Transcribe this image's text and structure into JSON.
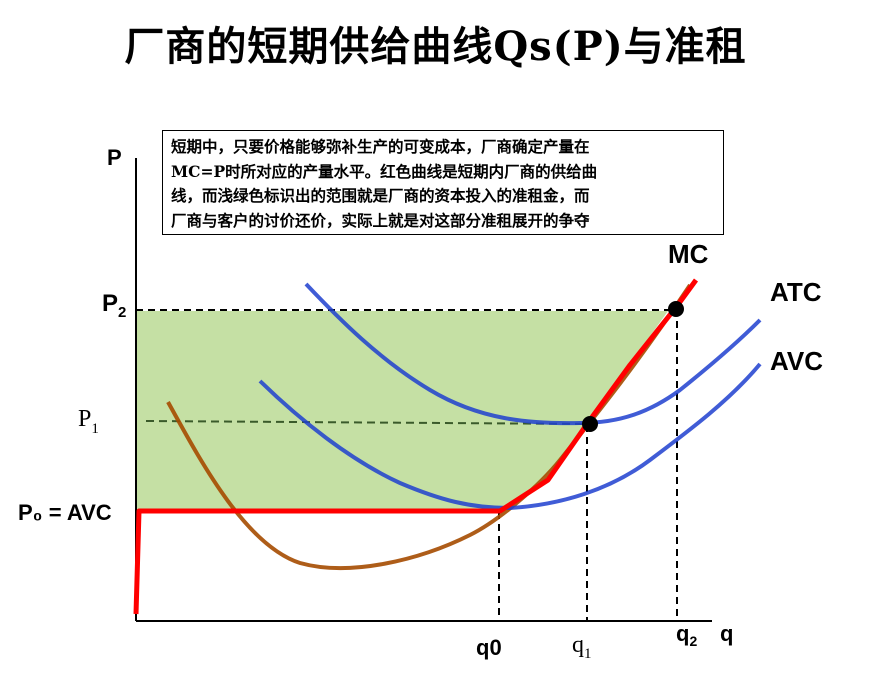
{
  "title": "厂商的短期供给曲线Qs(P)与准租",
  "note_lines": [
    "短期中，只要价格能够弥补生产的可变成本，厂商确定产量在",
    "MC=P时所对应的产量水平。红色曲线是短期内厂商的供给曲",
    "线，而浅绿色标识出的范围就是厂商的资本投入的准租金，而",
    "厂商与客户的讨价还价，实际上就是对这部分准租展开的争夺"
  ],
  "axis_labels": {
    "y": "P",
    "x": "q"
  },
  "price_labels": {
    "p2": "P",
    "p2_sub": "2",
    "p1": "P",
    "p1_sub": "1",
    "p0": "P₀ = AVC"
  },
  "quantity_labels": {
    "q0": "q0",
    "q1": "q",
    "q1_sub": "1",
    "q2": "q",
    "q2_sub": "2"
  },
  "colors": {
    "supply_curve": "#ff0000",
    "mc_curve": "#a52a00",
    "cost_curves": "#1e3fcf",
    "quasi_rent_fill": "#c5e0a4",
    "guide_lines": "#000000",
    "p1_line": "#3a5a2a"
  },
  "chart_data": {
    "type": "line",
    "x_label": "q",
    "y_label": "P",
    "series": [
      {
        "name": "MC",
        "values": []
      },
      {
        "name": "ATC",
        "values": []
      },
      {
        "name": "AVC",
        "values": []
      }
    ],
    "supply_curve": "Qs(P)",
    "price_levels": [
      "P₀ = AVC",
      "P₁",
      "P₂"
    ],
    "quantity_levels": [
      "q0",
      "q₁",
      "q₂"
    ],
    "points": [
      {
        "q": "q₁",
        "p": "P₁"
      },
      {
        "q": "q₂",
        "p": "P₂"
      }
    ]
  }
}
